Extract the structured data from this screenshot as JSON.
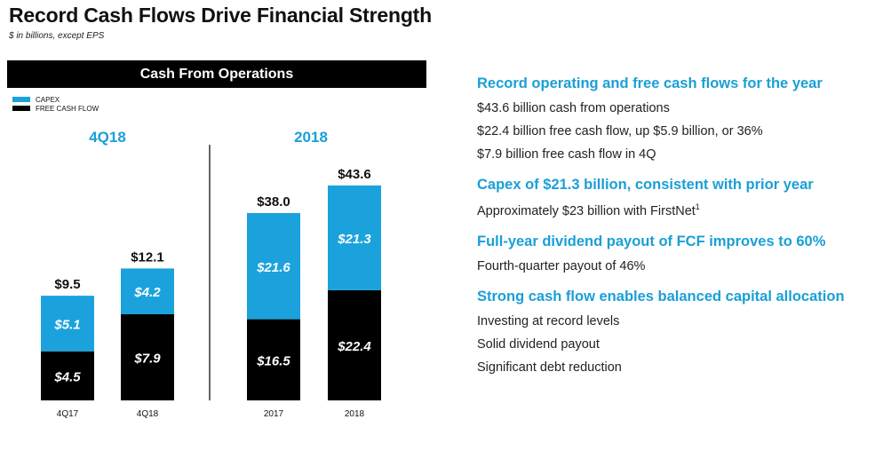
{
  "page": {
    "title": "Record Cash Flows Drive Financial Strength",
    "subtitle": "$ in billions, except EPS"
  },
  "chart_header": "Cash From Operations",
  "colors": {
    "capex": "#1ba2dc",
    "fcf": "#000000",
    "heading": "#1a9fd6"
  },
  "chart_data": {
    "type": "bar",
    "stacked": true,
    "title": "Cash From Operations",
    "legend": {
      "position": "top-left",
      "entries": [
        "CAPEX",
        "FREE CASH FLOW"
      ]
    },
    "groups": [
      {
        "label": "4Q18",
        "categories": [
          "4Q17",
          "4Q18"
        ],
        "capex": [
          5.1,
          4.2
        ],
        "fcf": [
          4.5,
          7.9
        ],
        "totals": [
          9.5,
          12.1
        ]
      },
      {
        "label": "2018",
        "categories": [
          "2017",
          "2018"
        ],
        "capex": [
          21.6,
          21.3
        ],
        "fcf": [
          16.5,
          22.4
        ],
        "totals": [
          38.0,
          43.6
        ]
      }
    ],
    "series": [
      {
        "name": "CAPEX",
        "key": "capex"
      },
      {
        "name": "FREE CASH FLOW",
        "key": "fcf"
      }
    ],
    "value_labels": {
      "capex": [
        [
          "$5.1",
          "$4.2"
        ],
        [
          "$21.6",
          "$21.3"
        ]
      ],
      "fcf": [
        [
          "$4.5",
          "$7.9"
        ],
        [
          "$16.5",
          "$22.4"
        ]
      ],
      "totals": [
        [
          "$9.5",
          "$12.1"
        ],
        [
          "$38.0",
          "$43.6"
        ]
      ]
    }
  },
  "sections": [
    {
      "heading": "Record operating and free cash flows for the year",
      "items": [
        {
          "text": "$43.6 billion cash from operations"
        },
        {
          "text": "$22.4 billion free cash flow, up $5.9 billion, or 36%"
        },
        {
          "text": "$7.9 billion free cash flow in 4Q"
        }
      ]
    },
    {
      "heading": "Capex of $21.3 billion, consistent with prior year",
      "items": [
        {
          "text": "Approximately $23 billion with FirstNet",
          "sup": "1"
        }
      ]
    },
    {
      "heading": "Full-year dividend payout of FCF improves to 60%",
      "items": [
        {
          "text": "Fourth-quarter payout of 46%"
        }
      ]
    },
    {
      "heading": "Strong cash flow enables balanced capital allocation",
      "items": [
        {
          "text": "Investing at record levels"
        },
        {
          "text": "Solid dividend payout"
        },
        {
          "text": "Significant debt reduction"
        }
      ]
    }
  ]
}
